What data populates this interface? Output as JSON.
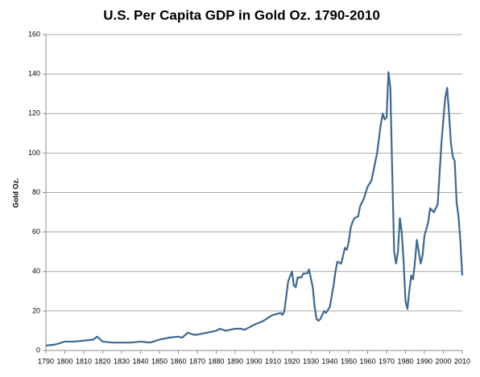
{
  "chart_data": {
    "type": "line",
    "title": "U.S. Per Capita GDP in Gold Oz. 1790-2010",
    "y_label": "Gold Oz.",
    "x": [
      1790,
      1795,
      1800,
      1805,
      1810,
      1815,
      1817,
      1820,
      1825,
      1830,
      1835,
      1840,
      1845,
      1850,
      1855,
      1860,
      1862,
      1865,
      1868,
      1870,
      1875,
      1880,
      1882,
      1885,
      1890,
      1893,
      1895,
      1900,
      1905,
      1908,
      1910,
      1914,
      1915,
      1916,
      1918,
      1920,
      1921,
      1922,
      1923,
      1925,
      1926,
      1928,
      1929,
      1931,
      1932,
      1933,
      1934,
      1935,
      1937,
      1938,
      1940,
      1942,
      1943,
      1944,
      1946,
      1947,
      1948,
      1949,
      1950,
      1951,
      1952,
      1953,
      1955,
      1956,
      1958,
      1959,
      1960,
      1962,
      1965,
      1967,
      1968,
      1969,
      1970,
      1971,
      1972,
      1973,
      1974,
      1975,
      1976,
      1977,
      1978,
      1979,
      1980,
      1981,
      1982,
      1983,
      1984,
      1985,
      1986,
      1987,
      1988,
      1989,
      1990,
      1992,
      1993,
      1995,
      1997,
      1999,
      2000,
      2001,
      2002,
      2003,
      2004,
      2005,
      2006,
      2007,
      2008,
      2009,
      2010
    ],
    "series": [
      {
        "color": "#3d6891",
        "values": [
          2.5,
          3,
          4.5,
          4.5,
          5,
          5.5,
          7,
          4.5,
          4,
          4,
          4,
          4.5,
          4,
          5.5,
          6.5,
          7,
          6.5,
          9,
          8,
          8,
          9,
          10,
          11,
          10,
          11,
          11,
          10.5,
          13,
          15,
          17,
          18,
          19,
          18,
          20,
          35,
          40,
          33,
          32,
          37,
          37,
          39,
          39,
          41,
          32,
          22,
          16,
          15,
          16,
          20,
          19,
          22,
          33,
          40,
          45,
          44,
          48,
          52,
          51,
          55,
          62,
          65,
          67,
          68,
          73,
          77,
          80,
          83,
          86,
          100,
          115,
          120,
          117,
          118,
          141,
          133,
          90,
          50,
          44,
          50,
          67,
          60,
          45,
          25,
          21,
          30,
          38,
          36,
          45,
          56,
          50,
          44,
          48,
          58,
          65,
          72,
          70,
          74,
          105,
          117,
          128,
          133,
          120,
          105,
          98,
          96,
          75,
          68,
          55,
          38
        ]
      }
    ],
    "xlim": [
      1790,
      2010
    ],
    "xticks": [
      1790,
      1800,
      1810,
      1820,
      1830,
      1840,
      1850,
      1860,
      1870,
      1880,
      1890,
      1900,
      1910,
      1920,
      1930,
      1940,
      1950,
      1960,
      1970,
      1980,
      1990,
      2000,
      2010
    ],
    "ylim": [
      0,
      160
    ],
    "yticks": [
      0,
      20,
      40,
      60,
      80,
      100,
      120,
      140,
      160
    ],
    "grid": true
  }
}
